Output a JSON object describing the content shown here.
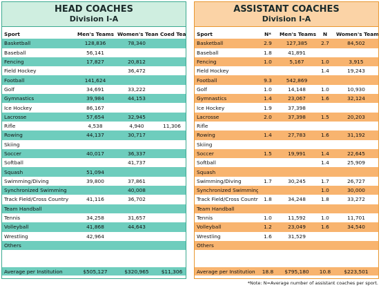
{
  "head": {
    "title": "HEAD COACHES",
    "subtitle": "Division I-A",
    "columns": [
      "Sport",
      "Men's Teams",
      "Women's Teams",
      "Coed Teams"
    ],
    "rows": [
      [
        "Basketball",
        "128,836",
        "78,340",
        null
      ],
      [
        "Baseball",
        "56,141",
        null,
        null
      ],
      [
        "Fencing",
        "17,827",
        "20,812",
        null
      ],
      [
        "Field Hockey",
        null,
        "36,472",
        null
      ],
      [
        "Football",
        "141,624",
        null,
        null
      ],
      [
        "Golf",
        "34,691",
        "33,222",
        null
      ],
      [
        "Gymnastics",
        "39,984",
        "44,153",
        null
      ],
      [
        "Ice Hockey",
        "86,167",
        null,
        null
      ],
      [
        "Lacrosse",
        "57,654",
        "32,945",
        null
      ],
      [
        "Rifle",
        "4,538",
        "4,940",
        "11,306"
      ],
      [
        "Rowing",
        "44,137",
        "30,717",
        null
      ],
      [
        "Skiing",
        null,
        null,
        null
      ],
      [
        "Soccer",
        "40,017",
        "36,337",
        null
      ],
      [
        "Softball",
        null,
        "41,737",
        null
      ],
      [
        "Squash",
        "51,094",
        null,
        null
      ],
      [
        "Swimming/Diving",
        "39,800",
        "37,861",
        null
      ],
      [
        "Synchronized Swimming",
        null,
        "40,008",
        null
      ],
      [
        "Track Field/Cross Country",
        "41,116",
        "36,702",
        null
      ],
      [
        "Team Handball",
        null,
        null,
        null
      ],
      [
        "Tennis",
        "34,258",
        "31,657",
        null
      ],
      [
        "Volleyball",
        "41,868",
        "44,643",
        null
      ],
      [
        "Wrestling",
        "42,964",
        null,
        null
      ],
      [
        "Others",
        null,
        null,
        null
      ]
    ],
    "average": [
      "Average per Institution",
      "$505,127",
      "$320,965",
      "$11,306"
    ]
  },
  "assistant": {
    "title": "ASSISTANT COACHES",
    "subtitle": "Division I-A",
    "columns": [
      "Sport",
      "N*",
      "Men's Teams",
      "N",
      "Women's Teams"
    ],
    "rows": [
      [
        "Basketball",
        "2.9",
        "127,385",
        "2.7",
        "84,502"
      ],
      [
        "Baseball",
        "1.8",
        "41,891",
        null,
        null
      ],
      [
        "Fencing",
        "1.0",
        "5,167",
        "1.0",
        "3,915"
      ],
      [
        "Field Hockey",
        null,
        null,
        "1.4",
        "19,243"
      ],
      [
        "Football",
        "9.3",
        "542,869",
        null,
        null
      ],
      [
        "Golf",
        "1.0",
        "14,148",
        "1.0",
        "10,930"
      ],
      [
        "Gymnastics",
        "1.4",
        "23,067",
        "1.6",
        "32,124"
      ],
      [
        "Ice Hockey",
        "1.9",
        "37,398",
        null,
        null
      ],
      [
        "Lacrosse",
        "2.0",
        "37,398",
        "1.5",
        "20,203"
      ],
      [
        "Rifle",
        null,
        null,
        null,
        null
      ],
      [
        "Rowing",
        "1.4",
        "27,783",
        "1.6",
        "31,192"
      ],
      [
        "Skiing",
        null,
        null,
        null,
        null
      ],
      [
        "Soccer",
        "1.5",
        "19,991",
        "1.4",
        "22,645"
      ],
      [
        "Softball",
        null,
        null,
        "1.4",
        "25,909"
      ],
      [
        "Squash",
        null,
        null,
        null,
        null
      ],
      [
        "Swimming/Diving",
        "1.7",
        "30,245",
        "1.7",
        "26,727"
      ],
      [
        "Synchronized Swimming",
        null,
        null,
        "1.0",
        "30,000"
      ],
      [
        "Track Field/Cross Country",
        "1.8",
        "34,248",
        "1.8",
        "33,272"
      ],
      [
        "Team Handball",
        null,
        null,
        null,
        null
      ],
      [
        "Tennis",
        "1.0",
        "11,592",
        "1.0",
        "11,701"
      ],
      [
        "Volleyball",
        "1.2",
        "23,049",
        "1.6",
        "34,540"
      ],
      [
        "Wrestling",
        "1.6",
        "31,529",
        null,
        null
      ],
      [
        "Others",
        null,
        null,
        null,
        null
      ]
    ],
    "average": [
      "Average per Institution",
      "18.8",
      "$795,180",
      "10.8",
      "$223,501"
    ],
    "note": "*Note: N=Average number of assistant coaches per sport."
  }
}
